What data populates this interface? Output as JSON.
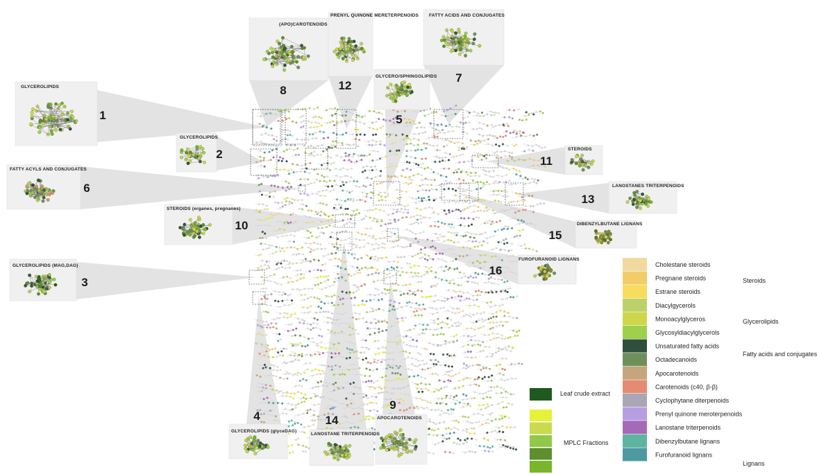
{
  "panels": [
    {
      "num": "1",
      "title": "GLYCEROLIPIDS"
    },
    {
      "num": "2",
      "title": "GLYCEROLIPIDS"
    },
    {
      "num": "3",
      "title": "GLYCEROLIPIDS (MAG,DAG)"
    },
    {
      "num": "4",
      "title": "GLYCEROLIPIDS (glyceDAG)"
    },
    {
      "num": "5",
      "title": "GLYCERO/SPHINGOLIPIDS"
    },
    {
      "num": "6",
      "title": "FATTY ACYLS AND CONJUGATES"
    },
    {
      "num": "7",
      "title": "FATTY ACIDS AND CONJUGATES"
    },
    {
      "num": "8",
      "title": "(APO)CAROTENOIDS"
    },
    {
      "num": "9",
      "title": "APOCAROTENOIDS"
    },
    {
      "num": "10",
      "title": "STEROIDS (erganes, pregnanes)"
    },
    {
      "num": "11",
      "title": "STEROIDS"
    },
    {
      "num": "12",
      "title": "PRENYL QUINONE MERETERPENOIDS"
    },
    {
      "num": "13",
      "title": "LANOSTANES TRITERPENOIDS"
    },
    {
      "num": "14",
      "title": "LANOSTANE TRITERPENOIDS"
    },
    {
      "num": "15",
      "title": "DIBENZYLBUTANE LIGNANS"
    },
    {
      "num": "16",
      "title": "FUROFURANOID LIGNANS"
    }
  ],
  "sample_legend": {
    "leaf_label": "Leaf crude extract",
    "leaf_color": "#1e5a1e",
    "mplc_label": "MPLC Fractions",
    "mplc_colors": [
      "#e7f03a",
      "#c9da4e",
      "#92c84a",
      "#5e8e2e",
      "#78b62c"
    ]
  },
  "class_legend": [
    {
      "label": "Cholestane steroids",
      "color": "#f1d9a0"
    },
    {
      "label": "Pregnane steroids",
      "color": "#f2cc68"
    },
    {
      "label": "Estrane steroids",
      "color": "#f7dc5e"
    },
    {
      "label": "Diacylgycerols",
      "color": "#bdd16b"
    },
    {
      "label": "Monoacylglyceros",
      "color": "#cfd64a"
    },
    {
      "label": "Glycosyldiacylglycerols",
      "color": "#9ed04b"
    },
    {
      "label": "Unsaturated fatty acids",
      "color": "#2f4f3e"
    },
    {
      "label": "Octadecanoids",
      "color": "#6e8f5a"
    },
    {
      "label": "Apocarotenoids",
      "color": "#c7a57c"
    },
    {
      "label": "Carotenoids (c40, β-β)",
      "color": "#e58a73"
    },
    {
      "label": "Cyclophytane diterpenoids",
      "color": "#a9a7b5"
    },
    {
      "label": "Prenyl quinone meroterpenoids",
      "color": "#b79ee3"
    },
    {
      "label": "Lanostane triterpenoids",
      "color": "#a46ab8"
    },
    {
      "label": "Dibenzylbutane lignans",
      "color": "#5fb3a1"
    },
    {
      "label": "Furofuranoid lignans",
      "color": "#4e9aa0"
    }
  ],
  "class_groups": [
    "Steroids",
    "Glycerolipids",
    "Fatty acids and conjugates",
    "Lignans"
  ]
}
